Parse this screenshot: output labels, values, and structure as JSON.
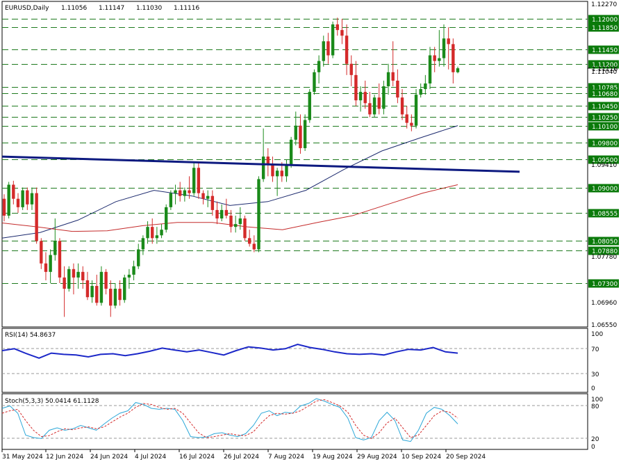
{
  "header": {
    "symbol": "EURUSD,Daily",
    "open": "1.11056",
    "high": "1.11147",
    "low": "1.11030",
    "close": "1.11116"
  },
  "price_axis": {
    "ticks": [
      "1.12270",
      "1.11040",
      "1.09410",
      "1.07780",
      "1.06960",
      "1.06550"
    ],
    "current_price": "1.11116"
  },
  "levels": [
    {
      "label": "1.12000",
      "value": 1.12
    },
    {
      "label": "1.11850",
      "value": 1.1185
    },
    {
      "label": "1.11450",
      "value": 1.1145
    },
    {
      "label": "1.11200",
      "value": 1.112
    },
    {
      "label": "1.10785",
      "value": 1.10785
    },
    {
      "label": "1.10680",
      "value": 1.1068
    },
    {
      "label": "1.10450",
      "value": 1.1045
    },
    {
      "label": "1.10250",
      "value": 1.1025
    },
    {
      "label": "1.10100",
      "value": 1.101
    },
    {
      "label": "1.09800",
      "value": 1.098
    },
    {
      "label": "1.09500",
      "value": 1.095
    },
    {
      "label": "1.09000",
      "value": 1.09
    },
    {
      "label": "1.08555",
      "value": 1.08555
    },
    {
      "label": "1.08050",
      "value": 1.0805
    },
    {
      "label": "1.07880",
      "value": 1.0788
    },
    {
      "label": "1.07300",
      "value": 1.073
    }
  ],
  "colors": {
    "bull": "#1a8a1a",
    "bear": "#d42a2a",
    "level_line": "#1e7a1e",
    "label_bg": "#0a7a0a",
    "ma_fast": "#1c2a6e",
    "ma_slow": "#c42a2a",
    "trendline": "#0d1a80",
    "rsi": "#1b27c8",
    "stoch_main": "#2ba7d8",
    "stoch_signal": "#d42a2a"
  },
  "x_axis": {
    "labels": [
      "31 May 2024",
      "12 Jun 2024",
      "24 Jun 2024",
      "4 Jul 2024",
      "16 Jul 2024",
      "26 Jul 2024",
      "7 Aug 2024",
      "19 Aug 2024",
      "29 Aug 2024",
      "10 Sep 2024",
      "20 Sep 2024"
    ]
  },
  "rsi": {
    "label": "RSI(14) 54.8637",
    "levels": [
      "100",
      "70",
      "30",
      "0"
    ]
  },
  "stoch": {
    "label": "Stoch(5,3,3) 50.0414 61.1128",
    "levels": [
      "100",
      "80",
      "20",
      "0"
    ]
  },
  "chart_data": {
    "type": "candlestick",
    "trendline": {
      "from": 1.0955,
      "to": 1.0928
    },
    "candles": [
      [
        1.088,
        1.0888,
        1.084,
        1.085
      ],
      [
        1.085,
        1.091,
        1.0845,
        1.0905
      ],
      [
        1.0905,
        1.0912,
        1.087,
        1.088
      ],
      [
        1.088,
        1.089,
        1.0855,
        1.0865
      ],
      [
        1.0865,
        1.09,
        1.086,
        1.0895
      ],
      [
        1.0895,
        1.09,
        1.086,
        1.087
      ],
      [
        1.087,
        1.09,
        1.086,
        1.089
      ],
      [
        1.089,
        1.09,
        1.08,
        1.0805
      ],
      [
        1.0805,
        1.081,
        1.0755,
        1.0765
      ],
      [
        1.0765,
        1.0785,
        1.0735,
        1.075
      ],
      [
        1.075,
        1.079,
        1.073,
        1.078
      ],
      [
        1.078,
        1.0845,
        1.077,
        1.0805
      ],
      [
        1.0805,
        1.081,
        1.073,
        1.074
      ],
      [
        1.074,
        1.076,
        1.067,
        1.072
      ],
      [
        1.072,
        1.076,
        1.0715,
        1.0755
      ],
      [
        1.0755,
        1.0765,
        1.071,
        1.074
      ],
      [
        1.074,
        1.0765,
        1.072,
        1.075
      ],
      [
        1.075,
        1.076,
        1.072,
        1.0735
      ],
      [
        1.0735,
        1.075,
        1.07,
        1.0705
      ],
      [
        1.0705,
        1.0735,
        1.0695,
        1.0725
      ],
      [
        1.0725,
        1.0745,
        1.069,
        1.0695
      ],
      [
        1.0695,
        1.076,
        1.069,
        1.075
      ],
      [
        1.075,
        1.0755,
        1.071,
        1.072
      ],
      [
        1.072,
        1.0735,
        1.067,
        1.069
      ],
      [
        1.069,
        1.073,
        1.0685,
        1.072
      ],
      [
        1.072,
        1.0735,
        1.069,
        1.07
      ],
      [
        1.07,
        1.0745,
        1.0695,
        1.074
      ],
      [
        1.074,
        1.0755,
        1.072,
        1.0745
      ],
      [
        1.0745,
        1.077,
        1.0735,
        1.076
      ],
      [
        1.076,
        1.08,
        1.0755,
        1.079
      ],
      [
        1.079,
        1.0815,
        1.078,
        1.081
      ],
      [
        1.081,
        1.084,
        1.08,
        1.083
      ],
      [
        1.083,
        1.0845,
        1.08,
        1.081
      ],
      [
        1.081,
        1.083,
        1.08,
        1.0815
      ],
      [
        1.0815,
        1.0835,
        1.081,
        1.0825
      ],
      [
        1.0825,
        1.087,
        1.082,
        1.0865
      ],
      [
        1.0865,
        1.0895,
        1.086,
        1.089
      ],
      [
        1.089,
        1.0905,
        1.087,
        1.0895
      ],
      [
        1.0895,
        1.091,
        1.0875,
        1.0885
      ],
      [
        1.0885,
        1.09,
        1.0875,
        1.0895
      ],
      [
        1.0895,
        1.092,
        1.088,
        1.089
      ],
      [
        1.089,
        1.0945,
        1.0885,
        1.0935
      ],
      [
        1.0935,
        1.0945,
        1.088,
        1.089
      ],
      [
        1.089,
        1.0895,
        1.087,
        1.088
      ],
      [
        1.088,
        1.0895,
        1.0865,
        1.0885
      ],
      [
        1.0885,
        1.0895,
        1.085,
        1.086
      ],
      [
        1.086,
        1.0875,
        1.0835,
        1.0845
      ],
      [
        1.0845,
        1.087,
        1.084,
        1.086
      ],
      [
        1.086,
        1.088,
        1.0845,
        1.085
      ],
      [
        1.085,
        1.086,
        1.082,
        1.083
      ],
      [
        1.083,
        1.085,
        1.082,
        1.0835
      ],
      [
        1.0835,
        1.0865,
        1.0825,
        1.0845
      ],
      [
        1.0845,
        1.085,
        1.0805,
        1.081
      ],
      [
        1.081,
        1.0825,
        1.0795,
        1.08
      ],
      [
        1.08,
        1.0815,
        1.0785,
        1.079
      ],
      [
        1.079,
        1.092,
        1.0785,
        1.0915
      ],
      [
        1.0915,
        1.1005,
        1.091,
        1.0955
      ],
      [
        1.0955,
        1.097,
        1.092,
        1.094
      ],
      [
        1.094,
        1.0955,
        1.091,
        1.092
      ],
      [
        1.092,
        1.0935,
        1.0885,
        1.093
      ],
      [
        1.093,
        1.0945,
        1.091,
        1.092
      ],
      [
        1.092,
        1.095,
        1.091,
        1.094
      ],
      [
        1.094,
        1.099,
        1.0935,
        1.0985
      ],
      [
        1.0985,
        1.1035,
        1.0975,
        1.101
      ],
      [
        1.101,
        1.103,
        1.096,
        1.097
      ],
      [
        1.097,
        1.103,
        1.0965,
        1.102
      ],
      [
        1.102,
        1.1075,
        1.1015,
        1.107
      ],
      [
        1.107,
        1.111,
        1.1065,
        1.1105
      ],
      [
        1.1105,
        1.1135,
        1.1085,
        1.1125
      ],
      [
        1.1125,
        1.117,
        1.1115,
        1.116
      ],
      [
        1.116,
        1.1175,
        1.112,
        1.1135
      ],
      [
        1.1135,
        1.1195,
        1.113,
        1.119
      ],
      [
        1.119,
        1.1202,
        1.117,
        1.118
      ],
      [
        1.118,
        1.12,
        1.1155,
        1.117
      ],
      [
        1.117,
        1.119,
        1.11,
        1.112
      ],
      [
        1.112,
        1.1135,
        1.108,
        1.11
      ],
      [
        1.11,
        1.1125,
        1.1045,
        1.1055
      ],
      [
        1.1055,
        1.108,
        1.1035,
        1.107
      ],
      [
        1.107,
        1.109,
        1.104,
        1.105
      ],
      [
        1.105,
        1.107,
        1.1025,
        1.103
      ],
      [
        1.103,
        1.1065,
        1.1025,
        1.106
      ],
      [
        1.106,
        1.1085,
        1.103,
        1.104
      ],
      [
        1.104,
        1.109,
        1.103,
        1.108
      ],
      [
        1.108,
        1.112,
        1.1065,
        1.1105
      ],
      [
        1.1105,
        1.116,
        1.108,
        1.109
      ],
      [
        1.109,
        1.111,
        1.105,
        1.106
      ],
      [
        1.106,
        1.1075,
        1.102,
        1.103
      ],
      [
        1.103,
        1.1045,
        1.1005,
        1.1015
      ],
      [
        1.1015,
        1.103,
        1.1,
        1.101
      ],
      [
        1.101,
        1.1075,
        1.1005,
        1.1065
      ],
      [
        1.1065,
        1.1085,
        1.106,
        1.1075
      ],
      [
        1.1075,
        1.11,
        1.1065,
        1.1085
      ],
      [
        1.1085,
        1.115,
        1.1075,
        1.1135
      ],
      [
        1.1135,
        1.115,
        1.1105,
        1.1125
      ],
      [
        1.1125,
        1.118,
        1.1115,
        1.113
      ],
      [
        1.113,
        1.119,
        1.1115,
        1.1165
      ],
      [
        1.1165,
        1.1185,
        1.111,
        1.1155
      ],
      [
        1.1155,
        1.1165,
        1.1085,
        1.1105
      ],
      [
        1.1105,
        1.1115,
        1.1103,
        1.1112
      ]
    ],
    "ma_fast": [
      1.081,
      1.082,
      1.0842,
      1.0875,
      1.0895,
      1.0885,
      1.0868,
      1.0875,
      1.0895,
      1.0932,
      1.0965,
      1.0988,
      1.101
    ],
    "ma_slow": [
      1.0837,
      1.083,
      1.0822,
      1.0823,
      1.0832,
      1.0838,
      1.0838,
      1.083,
      1.0825,
      1.0838,
      1.085,
      1.087,
      1.089,
      1.0905
    ],
    "rsi_values": [
      60,
      63,
      55,
      48,
      56,
      54,
      53,
      50,
      54,
      55,
      52,
      55,
      59,
      64,
      61,
      58,
      61,
      57,
      53,
      60,
      66,
      64,
      61,
      63,
      70,
      65,
      62,
      58,
      55,
      54,
      55,
      53,
      58,
      62,
      61,
      65,
      58,
      56
    ],
    "stoch_main": [
      80,
      85,
      70,
      25,
      20,
      18,
      35,
      40,
      35,
      38,
      45,
      40,
      35,
      48,
      60,
      70,
      75,
      92,
      88,
      80,
      78,
      80,
      78,
      55,
      22,
      20,
      21,
      28,
      30,
      25,
      22,
      28,
      45,
      70,
      75,
      65,
      72,
      70,
      85,
      90,
      100,
      95,
      88,
      82,
      60,
      20,
      15,
      20,
      55,
      72,
      55,
      15,
      12,
      35,
      70,
      82,
      78,
      65,
      48
    ],
    "stoch_signal": [
      70,
      75,
      78,
      55,
      35,
      22,
      24,
      32,
      38,
      36,
      40,
      42,
      38,
      42,
      52,
      62,
      70,
      82,
      90,
      88,
      82,
      78,
      80,
      70,
      50,
      30,
      20,
      22,
      25,
      28,
      25,
      24,
      32,
      50,
      65,
      70,
      68,
      70,
      75,
      85,
      95,
      98,
      92,
      85,
      72,
      45,
      25,
      18,
      30,
      50,
      60,
      40,
      20,
      25,
      45,
      65,
      75,
      72,
      60
    ]
  }
}
